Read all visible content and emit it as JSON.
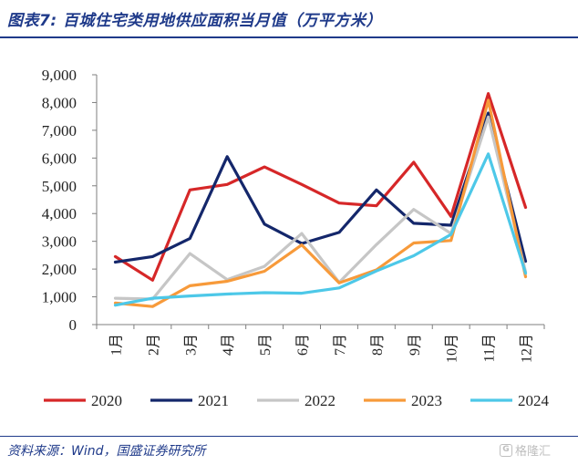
{
  "header": {
    "title": "图表7:  百城住宅类用地供应面积当月值（万平方米）"
  },
  "footer": {
    "source": "资料来源：Wind，国盛证券研究所",
    "watermark": "格隆汇",
    "watermark_icon": "G"
  },
  "chart_data": {
    "type": "line",
    "categories": [
      "1月",
      "2月",
      "3月",
      "4月",
      "5月",
      "6月",
      "7月",
      "8月",
      "9月",
      "10月",
      "11月",
      "12月"
    ],
    "y_ticks": [
      "0",
      "1,000",
      "2,000",
      "3,000",
      "4,000",
      "5,000",
      "6,000",
      "7,000",
      "8,000",
      "9,000"
    ],
    "ylim": [
      0,
      9000
    ],
    "grid": false,
    "legend_position": "bottom",
    "series": [
      {
        "name": "2020",
        "color": "#d62728",
        "values": [
          2450,
          1600,
          4850,
          5050,
          5680,
          5050,
          4380,
          4280,
          5850,
          3900,
          8320,
          4220
        ]
      },
      {
        "name": "2021",
        "color": "#14276b",
        "values": [
          2250,
          2450,
          3100,
          6050,
          3620,
          2920,
          3320,
          4850,
          3650,
          3580,
          7620,
          2280
        ]
      },
      {
        "name": "2022",
        "color": "#c6c6c6",
        "values": [
          950,
          920,
          2560,
          1620,
          2100,
          3280,
          1520,
          2880,
          4150,
          3280,
          7480,
          1900
        ]
      },
      {
        "name": "2023",
        "color": "#f79a3a",
        "values": [
          780,
          650,
          1400,
          1560,
          1920,
          2870,
          1500,
          1970,
          2940,
          3030,
          8080,
          1720
        ]
      },
      {
        "name": "2024",
        "color": "#4dc8e8",
        "values": [
          700,
          950,
          1030,
          1100,
          1150,
          1130,
          1320,
          1930,
          2480,
          3250,
          6150,
          1850
        ]
      }
    ]
  }
}
